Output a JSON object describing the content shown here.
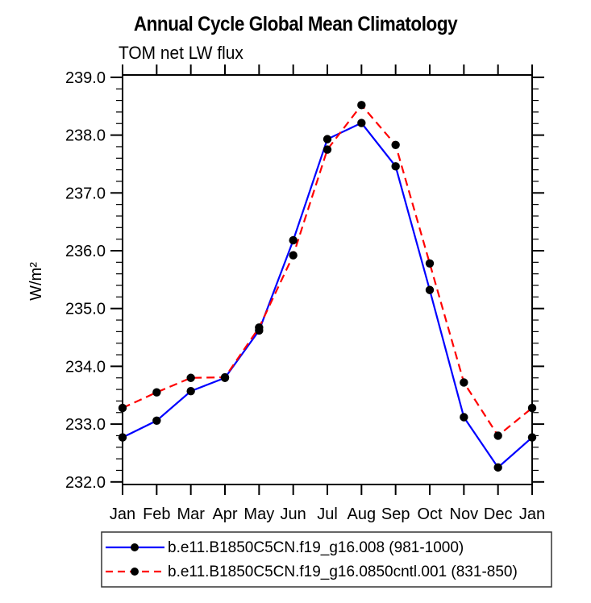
{
  "chart_data": {
    "type": "line",
    "title": "Annual Cycle Global Mean Climatology",
    "subtitle": "TOM net LW flux",
    "xlabel": "",
    "ylabel": "W/m²",
    "ylim": [
      232.0,
      239.0
    ],
    "ytick_labels": [
      "232.0",
      "233.0",
      "234.0",
      "235.0",
      "236.0",
      "237.0",
      "238.0",
      "239.0"
    ],
    "ytick_minor_step": 0.2,
    "grid": false,
    "axis_color": "#000000",
    "categories": [
      "Jan",
      "Feb",
      "Mar",
      "Apr",
      "May",
      "Jun",
      "Jul",
      "Aug",
      "Sep",
      "Oct",
      "Nov",
      "Dec",
      "Jan"
    ],
    "legend": {
      "position": "bottom",
      "border": true
    },
    "series": [
      {
        "name": "b.e11.B1850C5CN.f19_g16.008 (981-1000)",
        "color": "#0000ff",
        "style": "solid",
        "marker": "circle",
        "marker_color": "#000000",
        "values": [
          232.77,
          233.06,
          233.57,
          233.8,
          234.62,
          236.18,
          237.93,
          238.21,
          237.46,
          235.32,
          233.12,
          232.25,
          232.77
        ]
      },
      {
        "name": "b.e11.B1850C5CN.f19_g16.0850cntl.001 (831-850)",
        "color": "#ff0000",
        "style": "dashed",
        "marker": "circle",
        "marker_color": "#000000",
        "values": [
          233.28,
          233.55,
          233.8,
          233.81,
          234.67,
          235.92,
          237.75,
          238.52,
          237.83,
          235.78,
          233.72,
          232.8,
          233.28
        ]
      }
    ]
  }
}
